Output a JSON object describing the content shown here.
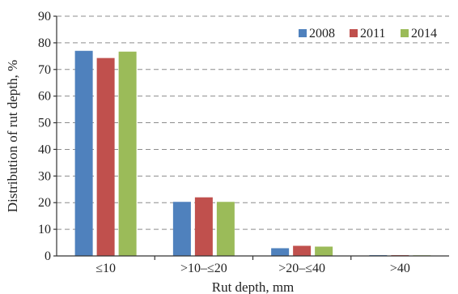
{
  "chart_data": {
    "type": "bar",
    "title": "",
    "xlabel": "Rut depth, mm",
    "ylabel": "Distribution of rut depth, %",
    "categories": [
      "≤10",
      ">10–≤20",
      ">20–≤40",
      ">40"
    ],
    "series": [
      {
        "name": "2008",
        "color": "#4f81bd",
        "values": [
          77.0,
          20.3,
          2.9,
          0.3
        ]
      },
      {
        "name": "2011",
        "color": "#c0504d",
        "values": [
          74.3,
          22.0,
          3.8,
          0.3
        ]
      },
      {
        "name": "2014",
        "color": "#9bbb59",
        "values": [
          76.7,
          20.3,
          3.5,
          0.2
        ]
      }
    ],
    "ylim": [
      0,
      90
    ],
    "yticks": [
      0,
      10,
      20,
      30,
      40,
      50,
      60,
      70,
      80,
      90
    ],
    "grid": "horizontal dashed",
    "legend_position": "top-right"
  }
}
